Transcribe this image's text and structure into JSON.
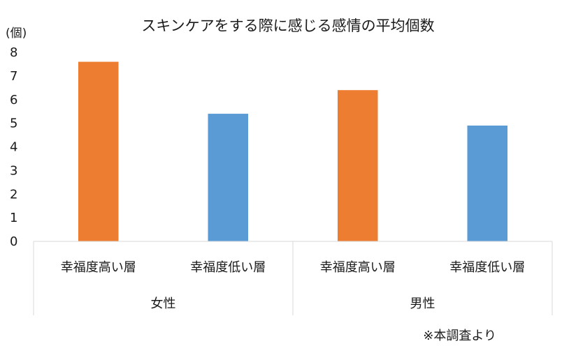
{
  "chart_data": {
    "type": "bar",
    "title": "スキンケアをする際に感じる感情の平均個数",
    "ylabel": "(個)",
    "ylim": [
      0,
      8
    ],
    "yticks": [
      "0",
      "1",
      "2",
      "3",
      "4",
      "5",
      "6",
      "7",
      "8"
    ],
    "groups": [
      {
        "label": "女性",
        "categories": [
          "幸福度高い層",
          "幸福度低い層"
        ],
        "values": [
          7.6,
          5.4
        ]
      },
      {
        "label": "男性",
        "categories": [
          "幸福度高い層",
          "幸福度低い層"
        ],
        "values": [
          6.4,
          4.9
        ]
      }
    ],
    "colors": {
      "幸福度高い層": "#ED7D31",
      "幸福度低い層": "#5B9BD5"
    },
    "grid": false,
    "legend": "none"
  },
  "note": "※本調査より"
}
